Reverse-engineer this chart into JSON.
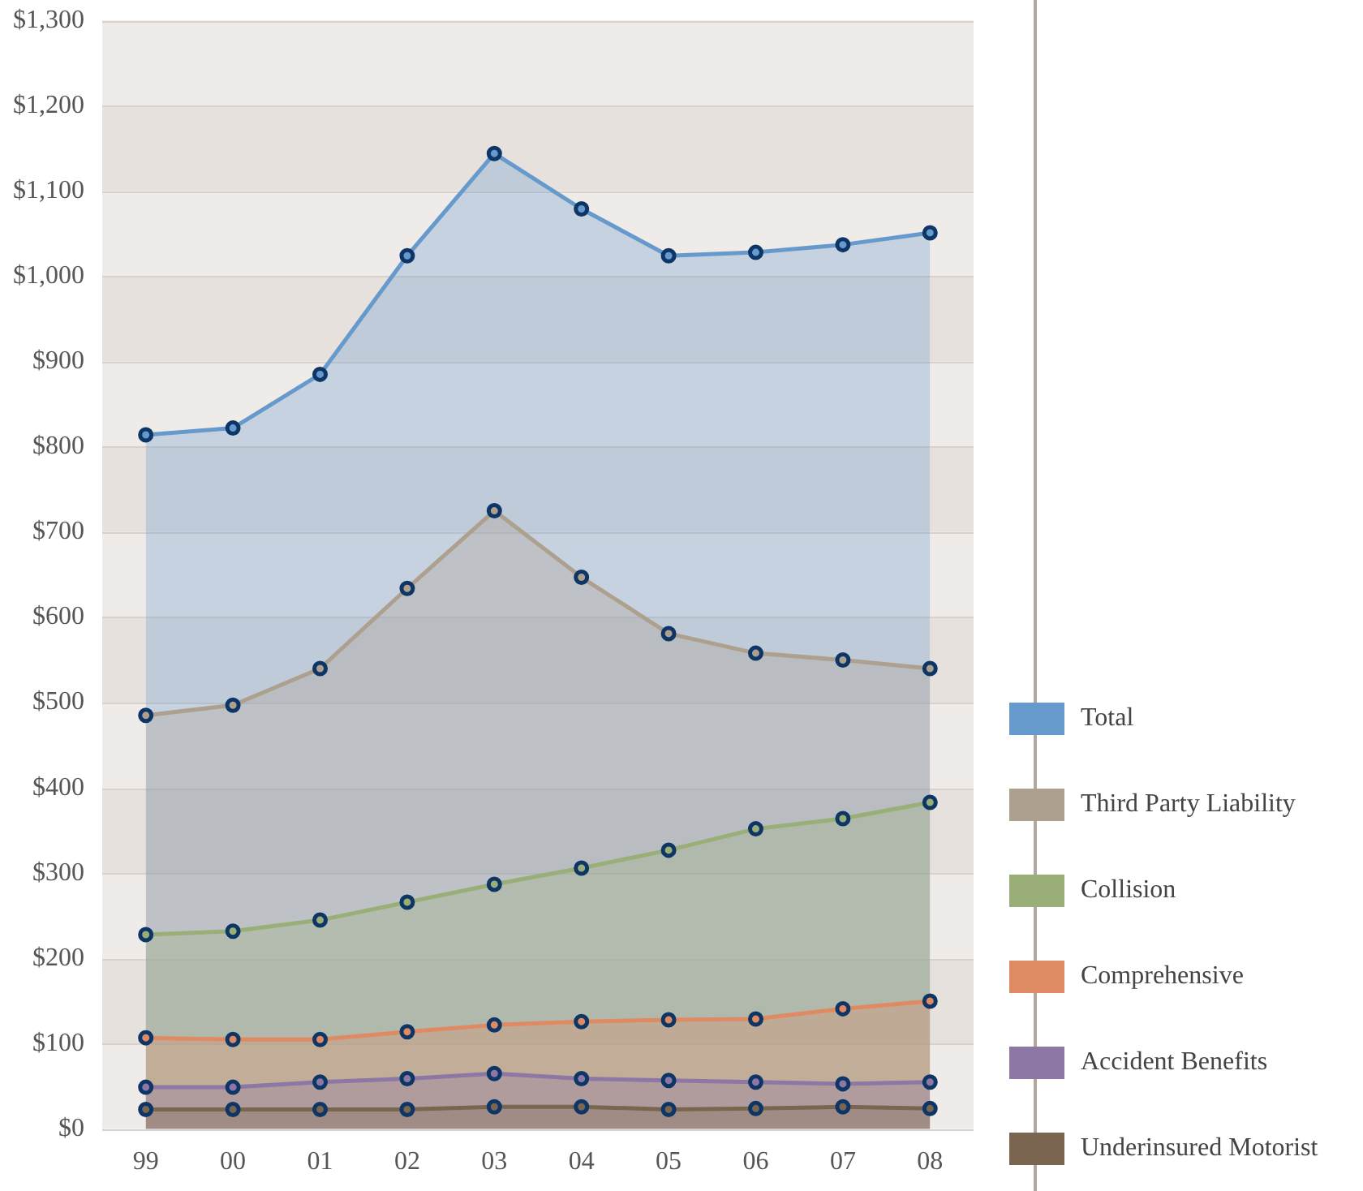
{
  "chart_data": {
    "type": "area",
    "categories": [
      "99",
      "00",
      "01",
      "02",
      "03",
      "04",
      "05",
      "06",
      "07",
      "08"
    ],
    "series": [
      {
        "name": "Total",
        "color": "#6699cc",
        "values": [
          814,
          822,
          885,
          1024,
          1144,
          1079,
          1024,
          1028,
          1037,
          1051
        ]
      },
      {
        "name": "Third Party Liability",
        "color": "#ada08e",
        "values": [
          485,
          497,
          540,
          634,
          725,
          647,
          581,
          558,
          550,
          540
        ]
      },
      {
        "name": "Collision",
        "color": "#9aaf78",
        "values": [
          228,
          232,
          245,
          266,
          287,
          306,
          327,
          352,
          364,
          383
        ]
      },
      {
        "name": "Comprehensive",
        "color": "#e08a63",
        "values": [
          107,
          105,
          105,
          114,
          122,
          126,
          128,
          129,
          141,
          150
        ]
      },
      {
        "name": "Accident Benefits",
        "color": "#8c77a5",
        "values": [
          49,
          49,
          55,
          59,
          65,
          59,
          57,
          55,
          53,
          55
        ]
      },
      {
        "name": "Underinsured Motorist",
        "color": "#7a6650",
        "values": [
          23,
          23,
          23,
          23,
          26,
          26,
          23,
          24,
          26,
          24
        ]
      }
    ],
    "ylim": [
      0,
      1300
    ],
    "yticks": [
      {
        "value": 0,
        "label": "$0"
      },
      {
        "value": 100,
        "label": "$100"
      },
      {
        "value": 200,
        "label": "$200"
      },
      {
        "value": 300,
        "label": "$300"
      },
      {
        "value": 400,
        "label": "$400"
      },
      {
        "value": 500,
        "label": "$500"
      },
      {
        "value": 600,
        "label": "$600"
      },
      {
        "value": 700,
        "label": "$700"
      },
      {
        "value": 800,
        "label": "$800"
      },
      {
        "value": 900,
        "label": "$900"
      },
      {
        "value": 1000,
        "label": "$1,000"
      },
      {
        "value": 1100,
        "label": "$1,100"
      },
      {
        "value": 1200,
        "label": "$1,200"
      },
      {
        "value": 1300,
        "label": "$1,300"
      }
    ],
    "grid": "y",
    "legend": "right",
    "marker": "circle",
    "line_style": "solid"
  }
}
